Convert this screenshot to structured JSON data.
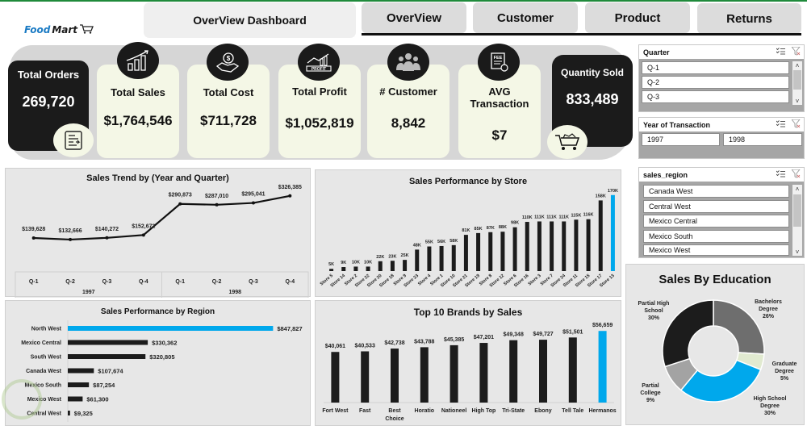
{
  "header": {
    "logo_food": "Food",
    "logo_mart": "Mart",
    "dashboard_title": "OverView Dashboard",
    "tabs": [
      {
        "label": "OverView",
        "active": true
      },
      {
        "label": "Customer",
        "active": false
      },
      {
        "label": "Product",
        "active": false
      },
      {
        "label": "Returns",
        "active": false
      }
    ]
  },
  "kpis": {
    "total_orders": {
      "label": "Total Orders",
      "value": "269,720",
      "icon": "order-list-icon"
    },
    "total_sales": {
      "label": "Total Sales",
      "value": "$1,764,546",
      "icon": "growth-chart-icon"
    },
    "total_cost": {
      "label": "Total Cost",
      "value": "$711,728",
      "icon": "money-bag-hand-icon"
    },
    "total_profit": {
      "label": "Total Profit",
      "value": "$1,052,819",
      "icon": "profit-chart-icon"
    },
    "customers": {
      "label": "# Customer",
      "value": "8,842",
      "icon": "people-group-icon"
    },
    "avg_transaction": {
      "label": "AVG Transaction",
      "value": "$7",
      "icon": "fee-receipt-icon"
    },
    "quantity_sold": {
      "label": "Quantity Sold",
      "value": "833,489",
      "icon": "shopping-cart-icon"
    }
  },
  "slicers": {
    "quarter": {
      "title": "Quarter",
      "items": [
        "Q-1",
        "Q-2",
        "Q-3"
      ]
    },
    "year": {
      "title": "Year of Transaction",
      "items": [
        "1997",
        "1998"
      ]
    },
    "region": {
      "title": "sales_region",
      "items": [
        "Canada West",
        "Central West",
        "Mexico Central",
        "Mexico South",
        "Mexico West"
      ]
    }
  },
  "colors": {
    "accent": "#00a8ec",
    "bar": "#1c1c1c",
    "panel": "#e7e7e7",
    "kpi_light": "#f4f7e6",
    "kpi_dark": "#1b1b1b"
  },
  "chart_data": [
    {
      "id": "sales_trend",
      "type": "line",
      "title": "Sales Trend by (Year and Quarter)",
      "categories": [
        "Q-1",
        "Q-2",
        "Q-3",
        "Q-4",
        "Q-1",
        "Q-2",
        "Q-3",
        "Q-4"
      ],
      "groups": [
        {
          "label": "1997",
          "span": 4
        },
        {
          "label": "1998",
          "span": 4
        }
      ],
      "values": [
        139628,
        132666,
        140272,
        152672,
        290873,
        287010,
        295041,
        326385
      ],
      "labels": [
        "$139,628",
        "$132,666",
        "$140,272",
        "$152,672",
        "$290,873",
        "$287,010",
        "$295,041",
        "$326,385"
      ],
      "ylim": [
        0,
        340000
      ],
      "grid": false
    },
    {
      "id": "store_sales",
      "type": "bar",
      "title": "Sales Performance by Store",
      "categories": [
        "Store 5",
        "Store 14",
        "Store 2",
        "Store 22",
        "Store 20",
        "Store 18",
        "Store 9",
        "Store 23",
        "Store 4",
        "Store 1",
        "Store 10",
        "Store 21",
        "Store 19",
        "Store 8",
        "Store 12",
        "Store 6",
        "Store 16",
        "Store 3",
        "Store 7",
        "Store 24",
        "Store 11",
        "Store 15",
        "Store 17",
        "Store 13"
      ],
      "values": [
        5,
        9,
        10,
        10,
        22,
        23,
        25,
        48,
        55,
        56,
        58,
        81,
        85,
        87,
        88,
        98,
        110,
        111,
        111,
        111,
        115,
        116,
        158,
        170
      ],
      "labels": [
        "5K",
        "9K",
        "10K",
        "10K",
        "22K",
        "23K",
        "25K",
        "48K",
        "55K",
        "56K",
        "58K",
        "81K",
        "85K",
        "87K",
        "88K",
        "98K",
        "110K",
        "111K",
        "111K",
        "111K",
        "115K",
        "116K",
        "158K",
        "170K"
      ],
      "unit": "thousands USD",
      "highlight_index": 23,
      "ylim": [
        0,
        175
      ],
      "grid": false
    },
    {
      "id": "region_sales",
      "type": "bar",
      "orientation": "horizontal",
      "title": "Sales Performance by Region",
      "categories": [
        "North West",
        "Mexico Central",
        "South West",
        "Canada West",
        "Mexico South",
        "Mexico West",
        "Central West"
      ],
      "values": [
        847827,
        330362,
        320805,
        107674,
        87254,
        61300,
        9325
      ],
      "labels": [
        "$847,827",
        "$330,362",
        "$320,805",
        "$107,674",
        "$87,254",
        "$61,300",
        "$9,325"
      ],
      "highlight_index": 0,
      "xlim": [
        0,
        850000
      ],
      "grid": false
    },
    {
      "id": "top_brands",
      "type": "bar",
      "title": "Top 10 Brands by Sales",
      "categories": [
        "Fort West",
        "Fast",
        "Best Choice",
        "Horatio",
        "Nationeel",
        "High Top",
        "Tri-State",
        "Ebony",
        "Tell Tale",
        "Hermanos"
      ],
      "values": [
        40061,
        40533,
        42738,
        43788,
        45385,
        47201,
        49348,
        49727,
        51501,
        56659
      ],
      "labels": [
        "$40,061",
        "$40,533",
        "$42,738",
        "$43,788",
        "$45,385",
        "$47,201",
        "$49,348",
        "$49,727",
        "$51,501",
        "$56,659"
      ],
      "highlight_index": 9,
      "ylim": [
        0,
        60000
      ],
      "grid": false
    },
    {
      "id": "education",
      "type": "pie",
      "donut": true,
      "title": "Sales By Education",
      "categories": [
        "Bachelors Degree",
        "Graduate Degree",
        "High School Degree",
        "Partial College",
        "Partial High School"
      ],
      "values": [
        26,
        5,
        30,
        9,
        30
      ],
      "labels": [
        "26%",
        "5%",
        "30%",
        "9%",
        "30%"
      ],
      "colors": [
        "#6e6e6e",
        "#e1ead0",
        "#00a8ec",
        "#a3a3a3",
        "#1c1c1c"
      ],
      "legend": "data-labels-outside"
    }
  ]
}
